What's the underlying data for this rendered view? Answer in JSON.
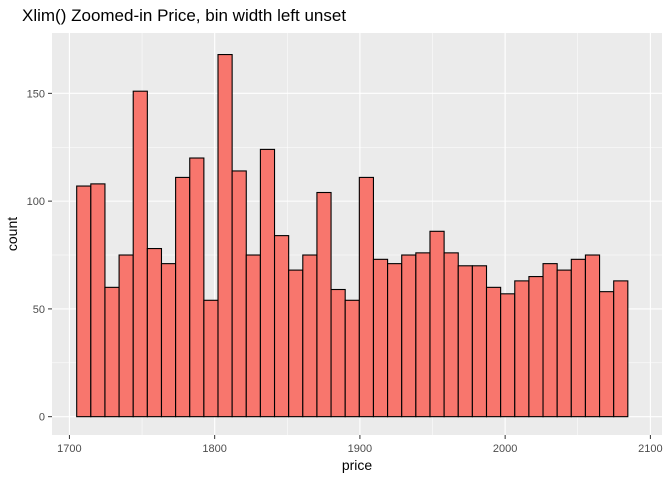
{
  "chart_data": {
    "type": "bar",
    "title": "Xlim() Zoomed-in Price, bin width left unset",
    "xlabel": "price",
    "ylabel": "count",
    "xlim": [
      1688,
      2108
    ],
    "ylim": [
      -8.5,
      178
    ],
    "x_ticks": [
      1700,
      1800,
      1900,
      2000,
      2100
    ],
    "x_tick_labels": [
      "1700",
      "1800",
      "1900",
      "2000",
      "2100"
    ],
    "y_ticks": [
      0,
      50,
      100,
      150
    ],
    "y_tick_labels": [
      "0",
      "50",
      "100",
      "150"
    ],
    "grid": true,
    "bin_start": 1705,
    "bin_width": 9.73,
    "values": [
      107,
      108,
      60,
      75,
      151,
      78,
      71,
      111,
      120,
      54,
      168,
      114,
      75,
      124,
      84,
      68,
      75,
      104,
      59,
      54,
      111,
      73,
      71,
      75,
      76,
      86,
      76,
      70,
      70,
      60,
      57,
      63,
      65,
      71,
      68,
      73,
      75,
      58,
      63
    ],
    "colors": {
      "fill": "#f8766d",
      "outline": "#000000",
      "panel": "#ebebeb",
      "grid": "#ffffff"
    }
  }
}
